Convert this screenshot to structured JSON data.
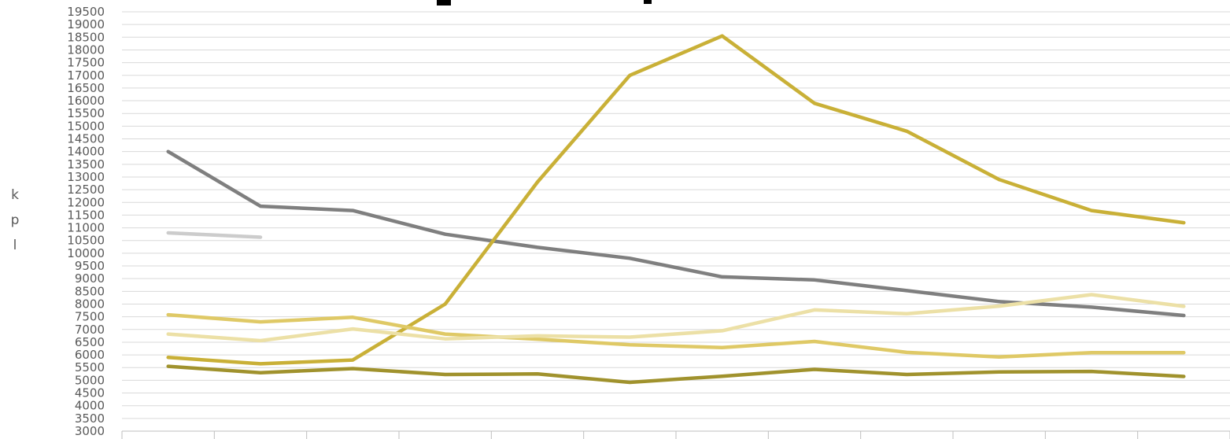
{
  "chart_data": {
    "type": "line",
    "ylabel": "kpl",
    "ylim": [
      3000,
      19500
    ],
    "y_tick_step": 500,
    "grid": true,
    "legend": "none",
    "categories": [
      "",
      "",
      "",
      "",
      "",
      "",
      "",
      "",
      "",
      "",
      "",
      ""
    ],
    "series": [
      {
        "color": "#7f7f7f",
        "values": [
          14000,
          11850,
          11680,
          10750,
          10230,
          9800,
          9070,
          8950,
          8530,
          8100,
          7880,
          7550
        ]
      },
      {
        "color": "#c9b037",
        "values": [
          5900,
          5650,
          5800,
          8000,
          12800,
          17000,
          18550,
          15900,
          14800,
          12900,
          11680,
          11200
        ]
      },
      {
        "color": "#cccccc",
        "values": [
          10800,
          10630,
          null,
          null,
          null,
          null,
          null,
          null,
          null,
          null,
          null,
          null
        ]
      },
      {
        "color": "#dfc966",
        "values": [
          7580,
          7300,
          7480,
          6820,
          6620,
          6400,
          6290,
          6530,
          6100,
          5920,
          6090,
          6090
        ]
      },
      {
        "color": "#ece0a6",
        "values": [
          6820,
          6560,
          7020,
          6630,
          6750,
          6700,
          6950,
          7770,
          7620,
          7920,
          8370,
          7910
        ]
      },
      {
        "color": "#a0922d",
        "values": [
          5550,
          5300,
          5460,
          5230,
          5250,
          4920,
          5160,
          5430,
          5230,
          5330,
          5350,
          5150
        ]
      }
    ]
  }
}
